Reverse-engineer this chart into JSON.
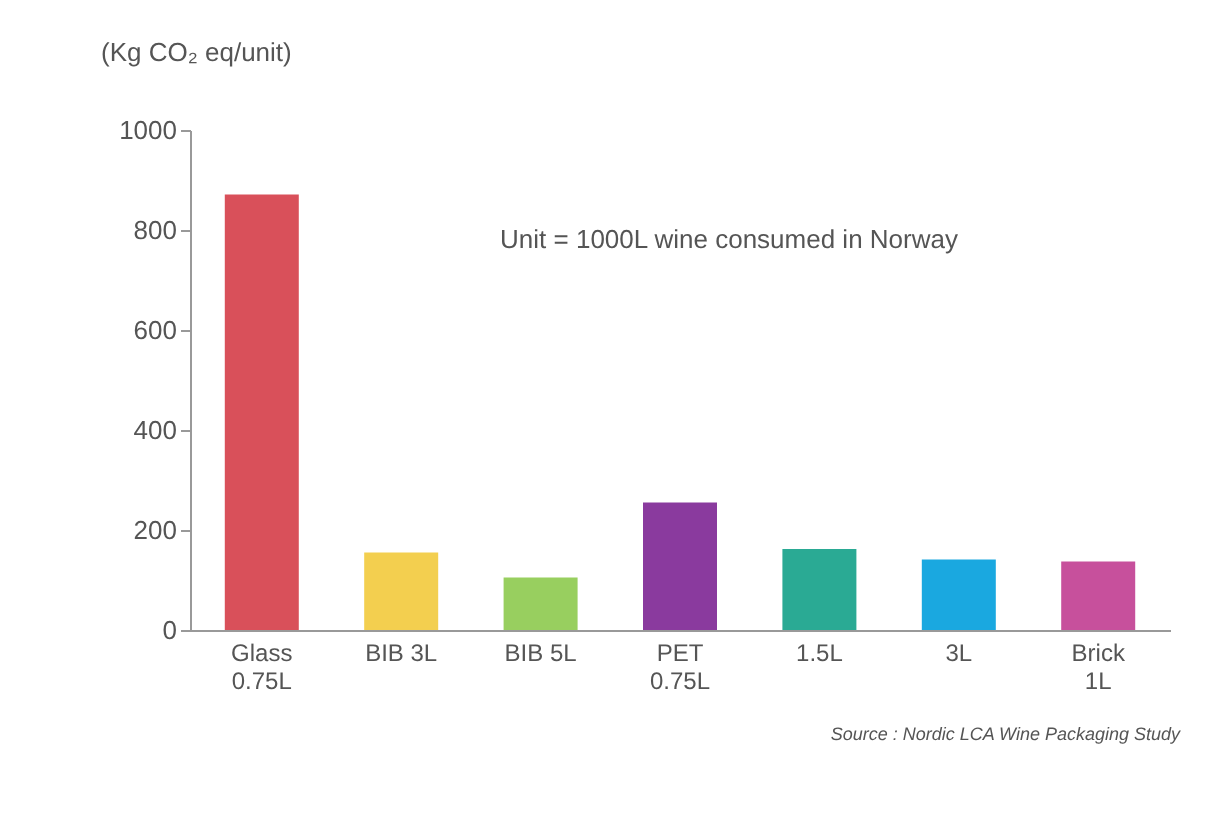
{
  "chart_data": {
    "type": "bar",
    "ylabel": "(Kg CO₂ eq/unit)",
    "categories": [
      "Glass\n0.75L",
      "BIB 3L",
      "BIB 5L",
      "PET\n0.75L",
      "1.5L",
      "3L",
      "Brick\n1L"
    ],
    "values": [
      871,
      155,
      105,
      255,
      162,
      141,
      137
    ],
    "colors": [
      "#d9505a",
      "#f3cf4f",
      "#98cf5f",
      "#8a3a9e",
      "#2aaa94",
      "#1aa8e0",
      "#c7509c"
    ],
    "ylim": [
      0,
      1000
    ],
    "yticks": [
      0,
      200,
      400,
      600,
      800,
      1000
    ],
    "grid": false,
    "annotations": [
      "Unit = 1000L wine consumed in Norway",
      "Source : Nordic LCA Wine Packaging Study"
    ]
  }
}
